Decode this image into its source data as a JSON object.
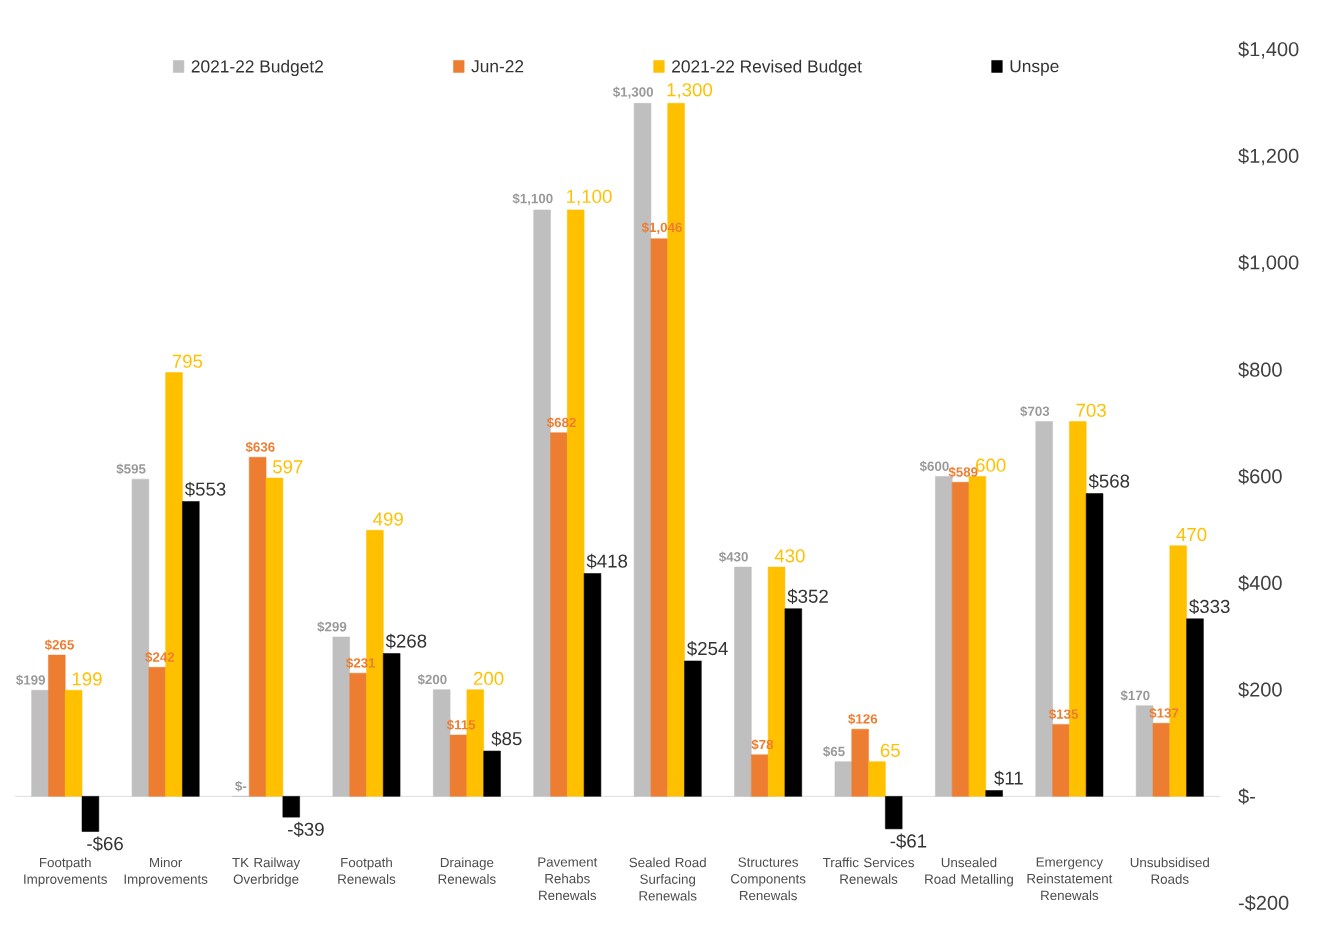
{
  "chart_data": {
    "type": "bar",
    "categories": [
      "Footpath Improvements",
      "Minor Improvements",
      "TK Railway Overbridge",
      "Footpath Renewals",
      "Drainage Renewals",
      "Pavement Rehabs Renewals",
      "Sealed Road Surfacing Renewals",
      "Structures Components Renewals",
      "Traffic Services Renewals",
      "Unsealed Road Metalling",
      "Emergency Reinstatement Renewals",
      "Unsubsidised Roads"
    ],
    "series": [
      {
        "name": "2021-22 Budget2",
        "color": "#bfbfbf",
        "values": [
          199,
          595,
          0,
          299,
          200,
          1100,
          1300,
          430,
          65,
          600,
          703,
          170
        ],
        "value_labels": [
          "$199",
          "$595",
          "$-",
          "$299",
          "$200",
          "$1,100",
          "$1,300",
          "$430",
          "$65",
          "$600",
          "$703",
          "$170"
        ]
      },
      {
        "name": "Jun-22",
        "color": "#ed7d31",
        "values": [
          265,
          242,
          636,
          231,
          115,
          682,
          1046,
          78,
          126,
          589,
          135,
          137
        ],
        "value_labels": [
          "$265",
          "$242",
          "$636",
          "$231",
          "$115",
          "$682",
          "$1,046",
          "$78",
          "$126",
          "$589",
          "$135",
          "$137"
        ]
      },
      {
        "name": "2021-22 Revised Budget",
        "color": "#ffc000",
        "values": [
          199,
          795,
          597,
          499,
          200,
          1100,
          1300,
          430,
          65,
          600,
          703,
          470
        ],
        "value_labels": [
          "199",
          "795",
          "597",
          "499",
          "200",
          "1,100",
          "1,300",
          "430",
          "65",
          "600",
          "703",
          "470"
        ]
      },
      {
        "name": "Unspe",
        "color": "#000000",
        "values": [
          -66,
          553,
          -39,
          268,
          85,
          418,
          254,
          352,
          -61,
          11,
          568,
          333
        ],
        "value_labels": [
          "-$66",
          "$553",
          "-$39",
          "$268",
          "$85",
          "$418",
          "$254",
          "$352",
          "-$61",
          "$11",
          "$568",
          "$333"
        ]
      }
    ],
    "ylim": [
      -200,
      1400
    ],
    "yticks": [
      {
        "value": -200,
        "label": "-$200"
      },
      {
        "value": 0,
        "label": "$-"
      },
      {
        "value": 200,
        "label": "$200"
      },
      {
        "value": 400,
        "label": "$400"
      },
      {
        "value": 600,
        "label": "$600"
      },
      {
        "value": 800,
        "label": "$800"
      },
      {
        "value": 1000,
        "label": "$1,000"
      },
      {
        "value": 1200,
        "label": "$1,200"
      },
      {
        "value": 1400,
        "label": "$1,400"
      }
    ],
    "legend": "top"
  }
}
